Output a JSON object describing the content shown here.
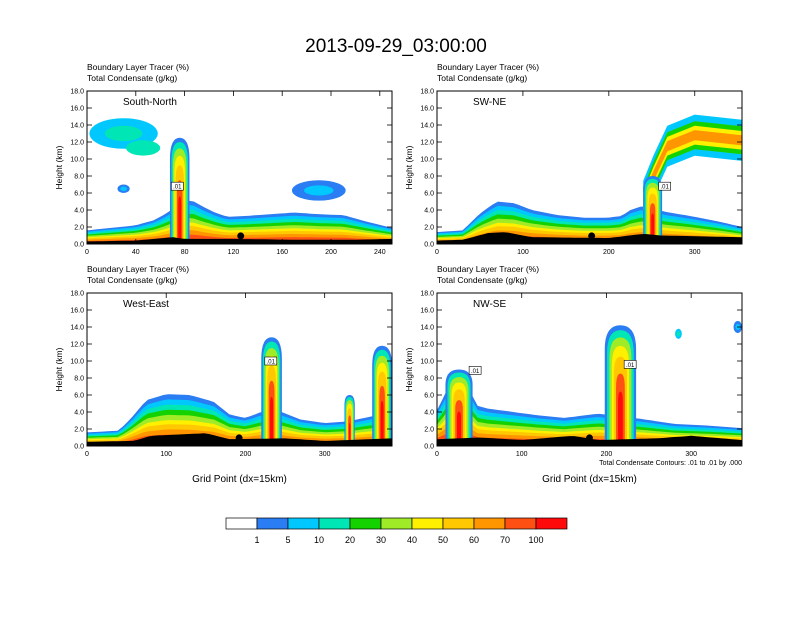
{
  "title": "2013-09-29_03:00:00",
  "variable_line1": "Boundary Layer Tracer   (%)",
  "variable_line2": "Total Condensate   (g/kg)",
  "contour_note": "Total Condensate Contours: .01 to .01 by .000",
  "palette": {
    "colors": [
      "#ffffff",
      "#2a7df2",
      "#00c8ff",
      "#00e6b4",
      "#14d200",
      "#a0eb28",
      "#fff000",
      "#ffc800",
      "#ff9600",
      "#ff5014",
      "#ff0a0a"
    ],
    "levels": [
      "1",
      "5",
      "10",
      "20",
      "30",
      "40",
      "50",
      "60",
      "70",
      "100"
    ]
  },
  "chart_data": [
    {
      "type": "heatmap",
      "panel": "South-North",
      "label": "South-North",
      "ylabel": "Height (km)",
      "xlabel": "",
      "xlim": [
        0,
        250
      ],
      "ylim": [
        0,
        18
      ],
      "xticks": [
        0,
        40,
        80,
        120,
        160,
        200,
        240
      ],
      "yticks": [
        "0.0",
        "2.0",
        "4.0",
        "6.0",
        "8.0",
        "10.0",
        "12.0",
        "14.0",
        "16.0",
        "18.0"
      ],
      "contour_labels": [
        {
          "text": ".01",
          "x": 74,
          "y": 6.8
        }
      ],
      "marker": {
        "x": 126,
        "y": 0.95
      },
      "features": {
        "boundary_layer": [
          [
            0,
            1.6
          ],
          [
            20,
            1.9
          ],
          [
            40,
            2.2
          ],
          [
            55,
            2.8
          ],
          [
            65,
            3.6
          ],
          [
            75,
            4.6
          ],
          [
            85,
            5.2
          ],
          [
            95,
            4.4
          ],
          [
            105,
            3.7
          ],
          [
            115,
            3.2
          ],
          [
            130,
            3.3
          ],
          [
            150,
            3.5
          ],
          [
            170,
            3.7
          ],
          [
            190,
            3.5
          ],
          [
            210,
            3.4
          ],
          [
            230,
            2.6
          ],
          [
            250,
            1.9
          ]
        ],
        "terrain": [
          [
            0,
            0.3
          ],
          [
            40,
            0.4
          ],
          [
            70,
            0.8
          ],
          [
            80,
            0.6
          ],
          [
            120,
            0.6
          ],
          [
            170,
            0.5
          ],
          [
            220,
            0.5
          ],
          [
            250,
            0.6
          ]
        ],
        "plumes": [
          {
            "x0": 68,
            "x1": 84,
            "top": 12.5
          }
        ],
        "blobs": [
          {
            "cx": 30,
            "cy": 13.0,
            "rx": 28,
            "ry": 1.8,
            "level": 2
          },
          {
            "cx": 46,
            "cy": 11.3,
            "rx": 14,
            "ry": 0.9,
            "level": 3
          },
          {
            "cx": 190,
            "cy": 6.3,
            "rx": 22,
            "ry": 1.2,
            "level": 1
          },
          {
            "cx": 30,
            "cy": 6.5,
            "rx": 5,
            "ry": 0.5,
            "level": 1
          }
        ]
      }
    },
    {
      "type": "heatmap",
      "panel": "SW-NE",
      "label": "SW-NE",
      "ylabel": "Height (km)",
      "xlabel": "",
      "xlim": [
        0,
        355
      ],
      "ylim": [
        0,
        18
      ],
      "xticks": [
        0,
        100,
        200,
        300
      ],
      "yticks": [
        "0.0",
        "2.0",
        "4.0",
        "6.0",
        "8.0",
        "10.0",
        "12.0",
        "14.0",
        "16.0",
        "18.0"
      ],
      "contour_labels": [
        {
          "text": ".01",
          "x": 265,
          "y": 6.8
        }
      ],
      "marker": {
        "x": 180,
        "y": 0.95
      },
      "features": {
        "boundary_layer": [
          [
            0,
            1.4
          ],
          [
            30,
            1.6
          ],
          [
            50,
            3.6
          ],
          [
            70,
            5.0
          ],
          [
            90,
            4.8
          ],
          [
            110,
            4.0
          ],
          [
            140,
            3.4
          ],
          [
            170,
            3.1
          ],
          [
            200,
            3.1
          ],
          [
            215,
            3.3
          ],
          [
            225,
            4.0
          ],
          [
            240,
            4.5
          ],
          [
            265,
            3.8
          ],
          [
            300,
            3.2
          ],
          [
            330,
            2.6
          ],
          [
            355,
            2.0
          ]
        ],
        "terrain": [
          [
            0,
            0.4
          ],
          [
            30,
            0.5
          ],
          [
            60,
            1.3
          ],
          [
            80,
            1.4
          ],
          [
            110,
            0.8
          ],
          [
            200,
            0.7
          ],
          [
            240,
            1.2
          ],
          [
            260,
            1.0
          ],
          [
            355,
            0.8
          ]
        ],
        "plumes": [
          {
            "x0": 240,
            "x1": 262,
            "top": 8.0
          }
        ],
        "arcs": [
          {
            "points": [
              [
                240,
                5.0
              ],
              [
                252,
                8.0
              ],
              [
                268,
                11.5
              ],
              [
                300,
                12.8
              ],
              [
                355,
                12.2
              ]
            ],
            "width": 2.2
          }
        ]
      }
    },
    {
      "type": "heatmap",
      "panel": "West-East",
      "label": "West-East",
      "ylabel": "Height (km)",
      "xlabel": "Grid Point (dx=15km)",
      "xlim": [
        0,
        385
      ],
      "ylim": [
        0,
        18
      ],
      "xticks": [
        0,
        100,
        200,
        300
      ],
      "yticks": [
        "0.0",
        "2.0",
        "4.0",
        "6.0",
        "8.0",
        "10.0",
        "12.0",
        "14.0",
        "16.0",
        "18.0"
      ],
      "contour_labels": [
        {
          "text": ".01",
          "x": 232,
          "y": 10.0
        }
      ],
      "marker": {
        "x": 192,
        "y": 0.95
      },
      "features": {
        "boundary_layer": [
          [
            0,
            1.6
          ],
          [
            40,
            1.8
          ],
          [
            55,
            3.2
          ],
          [
            75,
            5.4
          ],
          [
            100,
            6.1
          ],
          [
            130,
            6.0
          ],
          [
            160,
            5.2
          ],
          [
            180,
            3.7
          ],
          [
            200,
            3.3
          ],
          [
            220,
            4.0
          ],
          [
            240,
            4.2
          ],
          [
            270,
            3.1
          ],
          [
            300,
            2.7
          ],
          [
            330,
            2.9
          ],
          [
            360,
            3.5
          ],
          [
            385,
            3.2
          ]
        ],
        "terrain": [
          [
            0,
            0.5
          ],
          [
            60,
            0.6
          ],
          [
            80,
            1.2
          ],
          [
            150,
            1.5
          ],
          [
            180,
            0.8
          ],
          [
            250,
            0.9
          ],
          [
            300,
            0.6
          ],
          [
            385,
            0.9
          ]
        ],
        "plumes": [
          {
            "x0": 220,
            "x1": 246,
            "top": 12.8
          },
          {
            "x0": 360,
            "x1": 385,
            "top": 11.8
          },
          {
            "x0": 325,
            "x1": 338,
            "top": 6.0
          }
        ]
      }
    },
    {
      "type": "heatmap",
      "panel": "NW-SE",
      "label": "NW-SE",
      "ylabel": "Height (km)",
      "xlabel": "Grid Point (dx=15km)",
      "xlim": [
        0,
        360
      ],
      "ylim": [
        0,
        18
      ],
      "xticks": [
        0,
        100,
        200,
        300
      ],
      "yticks": [
        "0.0",
        "2.0",
        "4.0",
        "6.0",
        "8.0",
        "10.0",
        "12.0",
        "14.0",
        "16.0",
        "18.0"
      ],
      "contour_labels": [
        {
          "text": ".01",
          "x": 45,
          "y": 8.9
        },
        {
          "text": ".01",
          "x": 228,
          "y": 9.6
        }
      ],
      "marker": {
        "x": 180,
        "y": 0.95
      },
      "features": {
        "boundary_layer": [
          [
            0,
            4.2
          ],
          [
            10,
            6.2
          ],
          [
            20,
            8.5
          ],
          [
            35,
            8.3
          ],
          [
            45,
            4.8
          ],
          [
            60,
            4.4
          ],
          [
            90,
            4.0
          ],
          [
            120,
            3.6
          ],
          [
            150,
            3.3
          ],
          [
            190,
            3.8
          ],
          [
            240,
            3.2
          ],
          [
            280,
            2.6
          ],
          [
            320,
            2.4
          ],
          [
            360,
            2.1
          ]
        ],
        "terrain": [
          [
            0,
            0.8
          ],
          [
            50,
            1.0
          ],
          [
            100,
            0.7
          ],
          [
            160,
            1.2
          ],
          [
            190,
            0.7
          ],
          [
            260,
            0.9
          ],
          [
            300,
            1.2
          ],
          [
            360,
            0.7
          ]
        ],
        "plumes": [
          {
            "x0": 198,
            "x1": 235,
            "top": 14.2
          },
          {
            "x0": 10,
            "x1": 42,
            "top": 9.0
          }
        ],
        "blobs": [
          {
            "cx": 285,
            "cy": 13.2,
            "rx": 4,
            "ry": 0.6,
            "level": 2
          },
          {
            "cx": 355,
            "cy": 14.0,
            "rx": 5,
            "ry": 0.7,
            "level": 1
          }
        ]
      }
    }
  ],
  "colorbar": {
    "type": "legend",
    "labels": [
      "1",
      "5",
      "10",
      "20",
      "30",
      "40",
      "50",
      "60",
      "70",
      "100"
    ]
  }
}
